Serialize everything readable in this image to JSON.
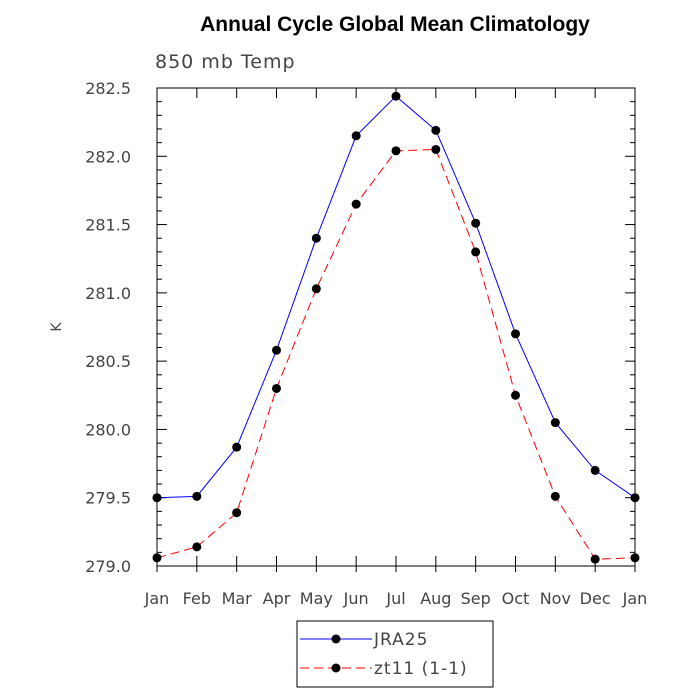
{
  "chart_data": {
    "type": "line",
    "title": "Annual Cycle Global Mean Climatology",
    "subtitle": "850 mb Temp",
    "xlabel": "",
    "ylabel": "K",
    "categories": [
      "Jan",
      "Feb",
      "Mar",
      "Apr",
      "May",
      "Jun",
      "Jul",
      "Aug",
      "Sep",
      "Oct",
      "Nov",
      "Dec",
      "Jan"
    ],
    "ylim": [
      279.0,
      282.5
    ],
    "yticks": [
      "279.0",
      "279.5",
      "280.0",
      "280.5",
      "281.0",
      "281.5",
      "282.0",
      "282.5"
    ],
    "grid": false,
    "legend_placement": "bottom",
    "series": [
      {
        "name": "JRA25",
        "color": "#0000ff",
        "dash": "solid",
        "values": [
          279.5,
          279.51,
          279.87,
          280.58,
          281.4,
          282.15,
          282.44,
          282.19,
          281.51,
          280.7,
          280.05,
          279.7,
          279.5
        ]
      },
      {
        "name": "zt11 (1-1)",
        "color": "#ff0000",
        "dash": "dashed",
        "values": [
          279.06,
          279.14,
          279.39,
          280.3,
          281.03,
          281.65,
          282.04,
          282.05,
          281.3,
          280.25,
          279.51,
          279.05,
          279.06
        ]
      }
    ]
  }
}
